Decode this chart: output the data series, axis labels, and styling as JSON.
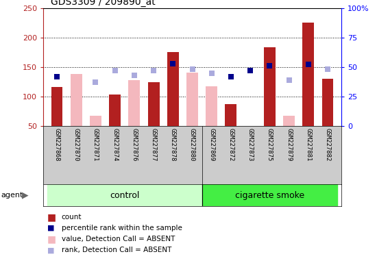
{
  "title": "GDS3309 / 209890_at",
  "samples": [
    "GSM227868",
    "GSM227870",
    "GSM227871",
    "GSM227874",
    "GSM227876",
    "GSM227877",
    "GSM227878",
    "GSM227880",
    "GSM227869",
    "GSM227872",
    "GSM227873",
    "GSM227875",
    "GSM227879",
    "GSM227881",
    "GSM227882"
  ],
  "n_control": 8,
  "count": [
    116,
    null,
    null,
    104,
    null,
    125,
    175,
    null,
    null,
    87,
    null,
    183,
    null,
    225,
    130
  ],
  "absent_value": [
    null,
    138,
    68,
    null,
    128,
    null,
    null,
    141,
    117,
    null,
    null,
    null,
    68,
    null,
    null
  ],
  "rank_pct": [
    42,
    null,
    null,
    null,
    null,
    null,
    53,
    null,
    null,
    42,
    47,
    51,
    null,
    52,
    null
  ],
  "absent_rank_pct": [
    null,
    null,
    37,
    47,
    43,
    47,
    null,
    48,
    45,
    null,
    47,
    null,
    39,
    null,
    48
  ],
  "ylim_left": [
    50,
    250
  ],
  "ylim_right": [
    0,
    100
  ],
  "yticks_left": [
    50,
    100,
    150,
    200,
    250
  ],
  "ytick_labels_right": [
    "0",
    "25",
    "50",
    "75",
    "100%"
  ],
  "bar_color_red": "#b22020",
  "bar_color_pink": "#f4b8be",
  "sq_color_blue": "#00008b",
  "sq_color_lightblue": "#aaaadd",
  "control_bg": "#ccffcc",
  "smoke_bg": "#44ee44",
  "strip_bg": "#cccccc",
  "control_label": "control",
  "smoke_label": "cigarette smoke",
  "legend_count": "count",
  "legend_pct": "percentile rank within the sample",
  "legend_absent_val": "value, Detection Call = ABSENT",
  "legend_absent_rank": "rank, Detection Call = ABSENT"
}
